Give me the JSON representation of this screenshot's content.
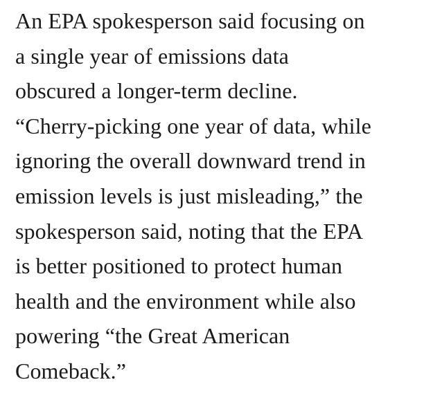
{
  "page": {
    "background": "#ffffff",
    "text_color": "#1b1b1b"
  },
  "article": {
    "paragraph": "An EPA spokesperson said focusing on\na single year of emissions data\nobscured a longer-term decline.\n“Cherry-picking one year of data, while\nignoring the overall downward trend in\nemission levels is just misleading,” the\nspokesperson said, noting that the EPA\nis better positioned to protect human\nhealth and the environment while also\npowering “the Great American\nComeback.”"
  }
}
